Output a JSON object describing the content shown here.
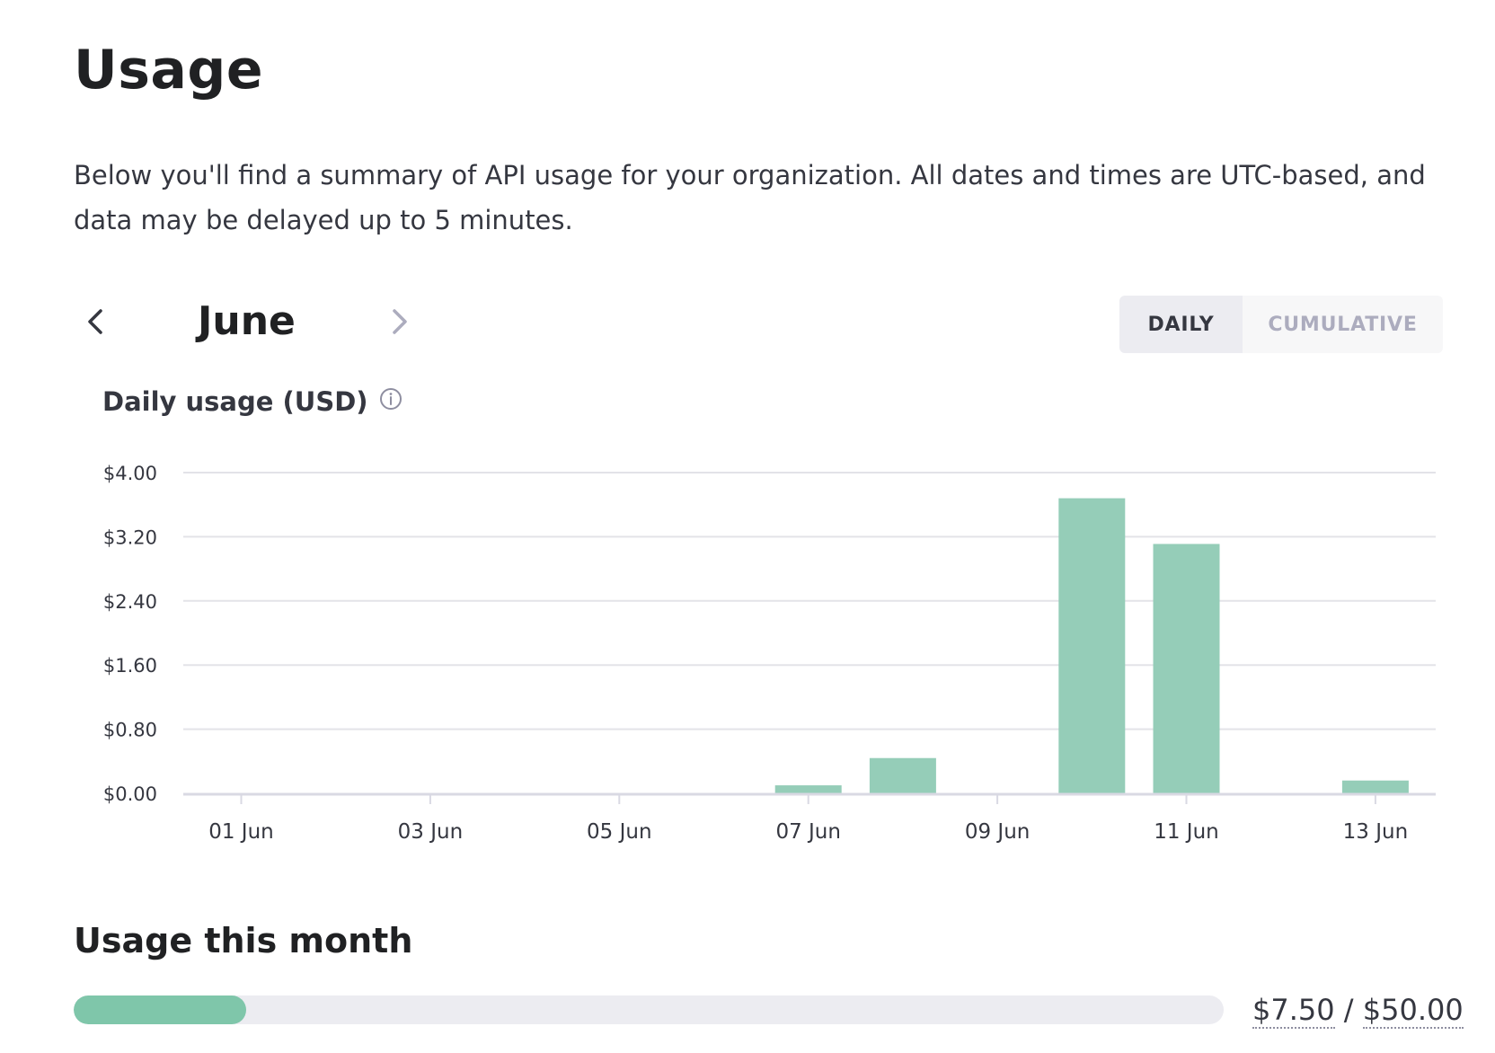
{
  "page": {
    "title": "Usage",
    "intro": "Below you'll find a summary of API usage for your organization. All dates and times are UTC-based, and data may be delayed up to 5 minutes."
  },
  "month_nav": {
    "month": "June",
    "prev_icon": "chevron-left-icon",
    "next_icon": "chevron-right-icon"
  },
  "view_toggle": {
    "daily": "DAILY",
    "cumulative": "CUMULATIVE",
    "selected": "DAILY"
  },
  "chart": {
    "title": "Daily usage (USD)",
    "info_icon": "info-icon"
  },
  "chart_data": {
    "type": "bar",
    "title": "Daily usage (USD)",
    "x": [
      "01 Jun",
      "02 Jun",
      "03 Jun",
      "04 Jun",
      "05 Jun",
      "06 Jun",
      "07 Jun",
      "08 Jun",
      "09 Jun",
      "10 Jun",
      "11 Jun",
      "12 Jun",
      "13 Jun"
    ],
    "values": [
      0,
      0,
      0,
      0,
      0,
      0,
      0.1,
      0.44,
      0,
      3.68,
      3.11,
      0,
      0.16
    ],
    "x_tick_labels": [
      "01 Jun",
      "03 Jun",
      "05 Jun",
      "07 Jun",
      "09 Jun",
      "11 Jun",
      "13 Jun"
    ],
    "y_tick_labels": [
      "$0.00",
      "$0.80",
      "$1.60",
      "$2.40",
      "$3.20",
      "$4.00"
    ],
    "y_ticks": [
      0,
      0.8,
      1.6,
      2.4,
      3.2,
      4.0
    ],
    "ylim": [
      0,
      4.0
    ],
    "grid": true,
    "bar_color": "#95cdb8"
  },
  "usage_month": {
    "title": "Usage this month",
    "used": "$7.50",
    "separator": "/",
    "limit": "$50.00",
    "progress": 0.15,
    "fill_color": "#7fc6aa"
  }
}
